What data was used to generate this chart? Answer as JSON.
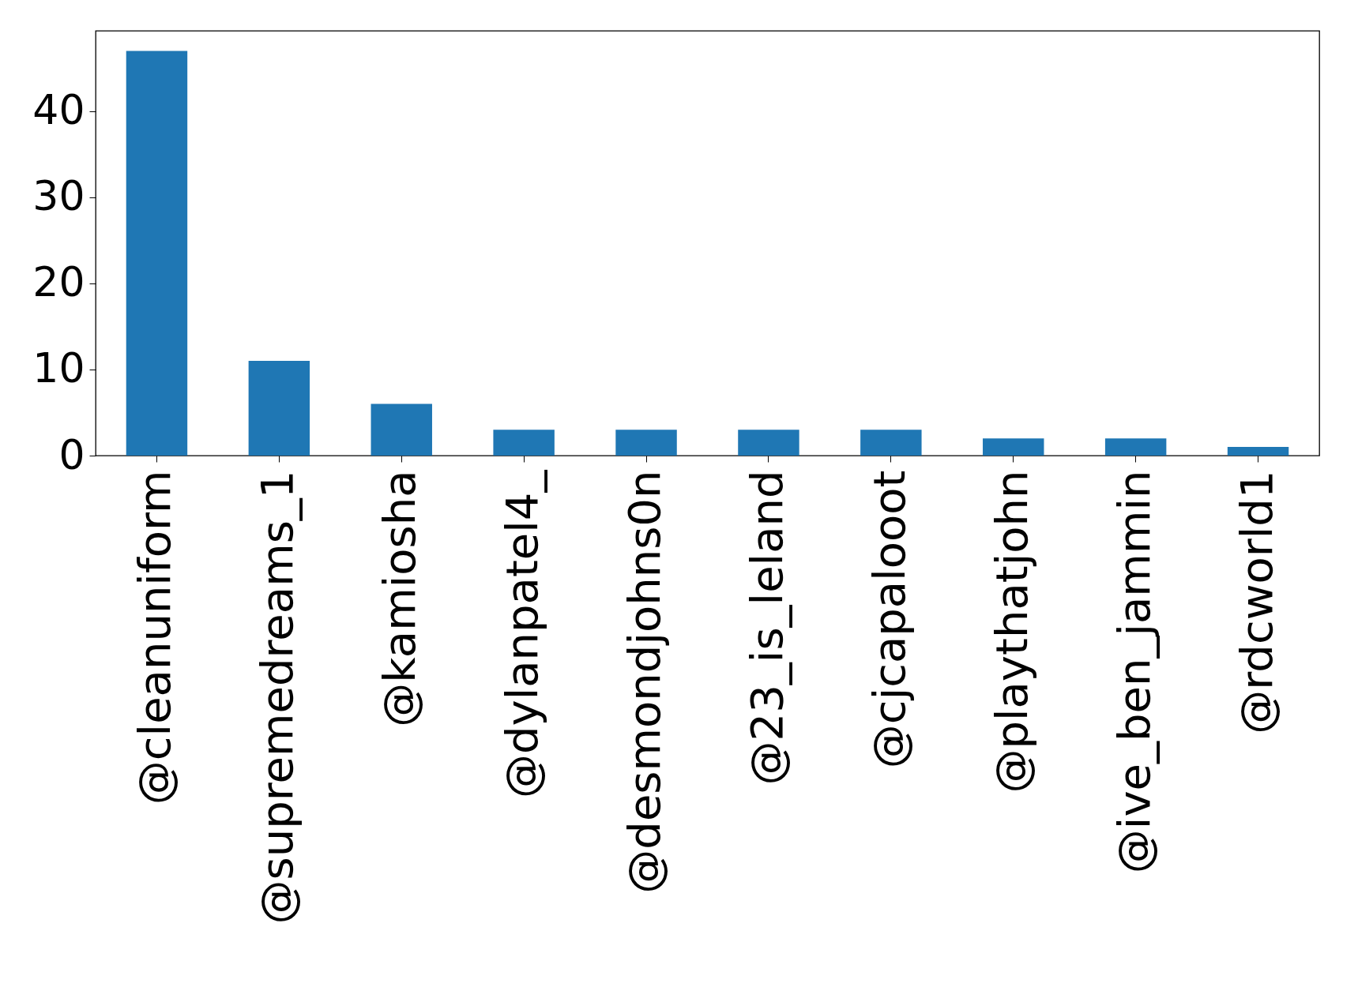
{
  "chart_data": {
    "type": "bar",
    "categories": [
      "@cleanuniform",
      "@supremedreams_1",
      "@kamiosha",
      "@dylanpatel4_",
      "@desmondjohns0n",
      "@23_is_leland",
      "@cjcapalooot",
      "@playthatjohn",
      "@ive_ben_jammin",
      "@rdcworld1"
    ],
    "values": [
      47,
      11,
      6,
      3,
      3,
      3,
      3,
      2,
      2,
      1
    ],
    "color": "#1f77b4",
    "ylim": [
      0,
      49.35
    ],
    "yticks": [
      0,
      10,
      20,
      30,
      40
    ],
    "grid": false
  }
}
